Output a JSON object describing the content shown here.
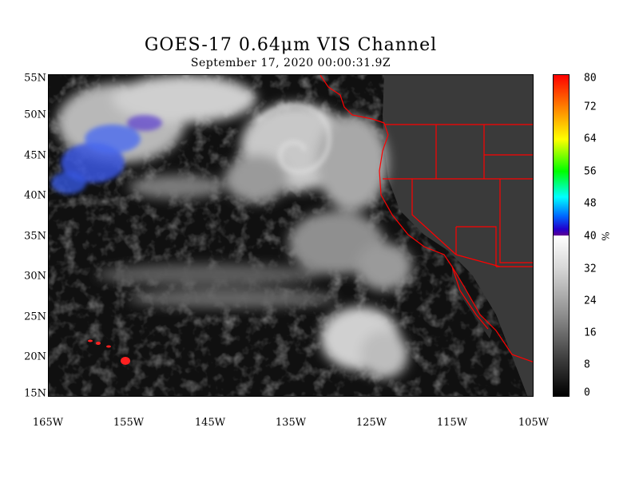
{
  "title": "GOES-17  0.64μm VIS Channel",
  "subtitle": "September 17,  2020 00:00:31.9Z",
  "lat_labels": [
    "55N",
    "50N",
    "45N",
    "40N",
    "35N",
    "30N",
    "25N",
    "20N",
    "15N"
  ],
  "lon_labels": [
    "165W",
    "155W",
    "145W",
    "135W",
    "125W",
    "115W",
    "105W"
  ],
  "colorbar": {
    "ticks": [
      "80",
      "72",
      "64",
      "56",
      "48",
      "40",
      "32",
      "24",
      "16",
      "8",
      "0"
    ],
    "unit": "%"
  },
  "colors": {
    "border_lines": "#ff0000",
    "background": "#ffffff"
  }
}
